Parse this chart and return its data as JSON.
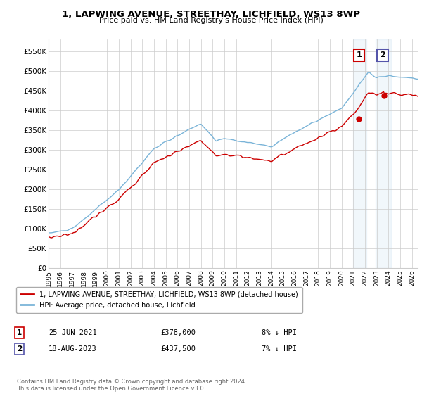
{
  "title": "1, LAPWING AVENUE, STREETHAY, LICHFIELD, WS13 8WP",
  "subtitle": "Price paid vs. HM Land Registry's House Price Index (HPI)",
  "ylabel_ticks": [
    "£0",
    "£50K",
    "£100K",
    "£150K",
    "£200K",
    "£250K",
    "£300K",
    "£350K",
    "£400K",
    "£450K",
    "£500K",
    "£550K"
  ],
  "ytick_vals": [
    0,
    50000,
    100000,
    150000,
    200000,
    250000,
    300000,
    350000,
    400000,
    450000,
    500000,
    550000
  ],
  "hpi_color": "#7ab4d8",
  "price_color": "#cc0000",
  "legend_label1": "1, LAPWING AVENUE, STREETHAY, LICHFIELD, WS13 8WP (detached house)",
  "legend_label2": "HPI: Average price, detached house, Lichfield",
  "annotation1_date": "25-JUN-2021",
  "annotation1_price": "£378,000",
  "annotation1_hpi": "8% ↓ HPI",
  "annotation2_date": "18-AUG-2023",
  "annotation2_price": "£437,500",
  "annotation2_hpi": "7% ↓ HPI",
  "footnote": "Contains HM Land Registry data © Crown copyright and database right 2024.\nThis data is licensed under the Open Government Licence v3.0.",
  "background_color": "#ffffff",
  "grid_color": "#cccccc",
  "ylim": [
    0,
    580000
  ],
  "xlim": [
    1995,
    2026.5
  ],
  "box1_edge": "#cc0000",
  "box2_edge": "#5555aa"
}
